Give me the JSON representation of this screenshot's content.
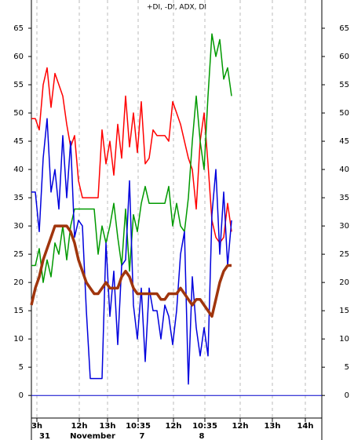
{
  "chart_data": {
    "type": "line",
    "title": "+DI, -DI, ADX, DI",
    "x": [
      0,
      1,
      2,
      3,
      4,
      5,
      6,
      7,
      8,
      9,
      10,
      11,
      12,
      13,
      14,
      15,
      16,
      17,
      18,
      19,
      20,
      21,
      22,
      23,
      24,
      25,
      26,
      27,
      28,
      29,
      30,
      31,
      32,
      33,
      34,
      35,
      36,
      37,
      38,
      39,
      40,
      41,
      42,
      43,
      44,
      45,
      46,
      47,
      48,
      49,
      50,
      51
    ],
    "series": [
      {
        "color": "#ff0000",
        "width": 1.5,
        "values": [
          49,
          49,
          47,
          55,
          58,
          51,
          57,
          55,
          53,
          48,
          44,
          46,
          38,
          35,
          35,
          35,
          35,
          35,
          47,
          41,
          45,
          39,
          48,
          42,
          53,
          44,
          50,
          43,
          52,
          41,
          42,
          47,
          46,
          46,
          46,
          45,
          52,
          50,
          48,
          45,
          42,
          40,
          33,
          45,
          50,
          41,
          31,
          28,
          27,
          28,
          34,
          29
        ]
      },
      {
        "color": "#009900",
        "width": 1.5,
        "values": [
          23,
          23,
          26,
          20,
          24,
          21,
          27,
          25,
          30,
          24,
          30,
          33,
          33,
          33,
          33,
          33,
          33,
          25,
          30,
          27,
          30,
          34,
          28,
          23,
          33,
          22,
          32,
          29,
          34,
          37,
          34,
          34,
          34,
          34,
          34,
          37,
          30,
          34,
          30,
          29,
          35,
          45,
          53,
          45,
          40,
          53,
          64,
          60,
          63,
          56,
          58,
          53
        ]
      },
      {
        "color": "#0000dd",
        "width": 1.5,
        "values": [
          36,
          36,
          29,
          42,
          49,
          36,
          40,
          33,
          46,
          35,
          45,
          28,
          31,
          30,
          15,
          3,
          3,
          3,
          3,
          27,
          14,
          22,
          9,
          23,
          24,
          38,
          16,
          10,
          19,
          6,
          19,
          15,
          15,
          10,
          16,
          14,
          9,
          15,
          25,
          29,
          2,
          21,
          12,
          7,
          12,
          7,
          32,
          40,
          25,
          36,
          23,
          31
        ]
      },
      {
        "color": "#a0350d",
        "width": 3.5,
        "values": [
          16,
          19,
          21,
          24,
          26,
          28,
          30,
          30,
          30,
          30,
          29,
          27,
          24,
          22,
          20,
          19,
          18,
          18,
          19,
          20,
          19,
          19,
          19,
          21,
          22,
          21,
          19,
          18,
          18,
          18,
          18,
          18,
          18,
          17,
          17,
          18,
          18,
          18,
          19,
          18,
          17,
          16,
          17,
          17,
          16,
          15,
          14,
          17,
          20,
          22,
          23,
          23
        ]
      }
    ],
    "xlim": [
      0,
      74
    ],
    "ylim": [
      -4,
      70
    ],
    "yticks": [
      0,
      5,
      10,
      15,
      20,
      25,
      30,
      35,
      40,
      45,
      50,
      55,
      60,
      65
    ],
    "xticks": [
      {
        "value": 1.4,
        "label": "3h"
      },
      {
        "value": 12.2,
        "label": "12h"
      },
      {
        "value": 19.4,
        "label": "13h"
      },
      {
        "value": 27.2,
        "label": "10:35"
      },
      {
        "value": 36.2,
        "label": "12h"
      },
      {
        "value": 44.2,
        "label": "10:35"
      },
      {
        "value": 53.2,
        "label": "12h"
      },
      {
        "value": 61.4,
        "label": "13h"
      },
      {
        "value": 69.8,
        "label": "14h"
      }
    ],
    "date_labels": [
      {
        "value": 3.4,
        "label": "31"
      },
      {
        "value": 15.6,
        "label": "November"
      },
      {
        "value": 28.2,
        "label": "7"
      },
      {
        "value": 43.4,
        "label": "8"
      }
    ],
    "zero_line": 0,
    "zero_line_color": "#0000cc",
    "grid": true
  }
}
